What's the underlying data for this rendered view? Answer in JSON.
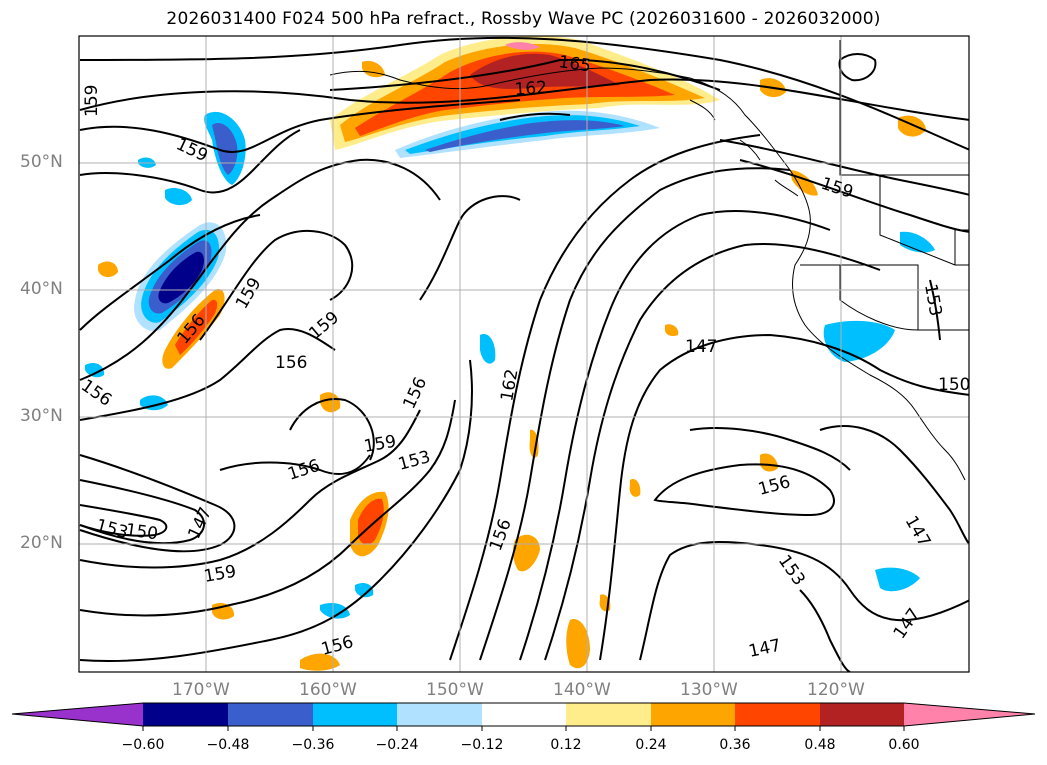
{
  "title": "2026031400 F024 500 hPa refract., Rossby Wave PC (2026031600 - 2026032000)",
  "lat_labels": [
    "50°N",
    "40°N",
    "30°N",
    "20°N"
  ],
  "lon_labels": [
    "170°W",
    "160°W",
    "150°W",
    "140°W",
    "130°W",
    "120°W"
  ],
  "contour_labels": [
    "165",
    "162",
    "159",
    "159",
    "159",
    "159",
    "159",
    "159",
    "156",
    "156",
    "156",
    "156",
    "156",
    "156",
    "156",
    "156",
    "153",
    "153",
    "153",
    "150",
    "150",
    "147",
    "147",
    "147",
    "147",
    "147",
    "162",
    "159",
    "153"
  ],
  "colorbar": {
    "ticks": [
      "−0.60",
      "−0.48",
      "−0.36",
      "−0.24",
      "−0.12",
      "0.12",
      "0.24",
      "0.36",
      "0.48",
      "0.60"
    ],
    "colors": [
      "#9932cc",
      "#00008b",
      "#3a5fcd",
      "#00bfff",
      "#b0e2ff",
      "#ffffff",
      "#ffec8b",
      "#ffa500",
      "#ff4500",
      "#b22222",
      "#ff82ab"
    ]
  },
  "chart_data": {
    "type": "heatmap",
    "title": "2026031400 F024 500 hPa refract., Rossby Wave PC (2026031600 - 2026032000)",
    "x_range": [
      -180,
      -110
    ],
    "y_range": [
      10,
      60
    ],
    "xticks": [
      -170,
      -160,
      -150,
      -140,
      -130,
      -120
    ],
    "yticks": [
      20,
      30,
      40,
      50
    ],
    "contour_levels": [
      147,
      150,
      153,
      156,
      159,
      162,
      165
    ],
    "color_levels": [
      -0.6,
      -0.48,
      -0.36,
      -0.24,
      -0.12,
      0.12,
      0.24,
      0.36,
      0.48,
      0.6
    ],
    "grid": true
  }
}
